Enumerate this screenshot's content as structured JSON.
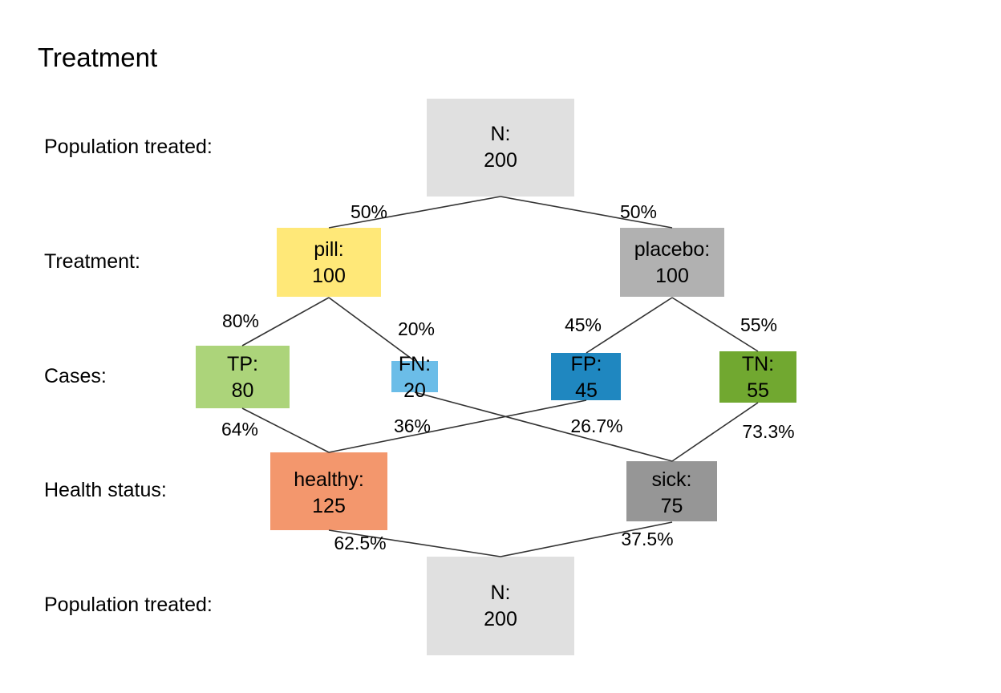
{
  "title": "Treatment",
  "row_labels": {
    "population_top": "Population treated:",
    "treatment": "Treatment:",
    "cases": "Cases:",
    "health_status": "Health status:",
    "population_bottom": "Population treated:"
  },
  "nodes": {
    "n_top": {
      "label": "N:",
      "value": "200",
      "color": "#e0e0e0"
    },
    "pill": {
      "label": "pill:",
      "value": "100",
      "color": "#ffe878"
    },
    "placebo": {
      "label": "placebo:",
      "value": "100",
      "color": "#b1b1b1"
    },
    "tp": {
      "label": "TP:",
      "value": "80",
      "color": "#acd47a"
    },
    "fn": {
      "label": "FN:",
      "value": "20",
      "color": "#6bbde8"
    },
    "fp": {
      "label": "FP:",
      "value": "45",
      "color": "#1f87c0"
    },
    "tn": {
      "label": "TN:",
      "value": "55",
      "color": "#71a830"
    },
    "healthy": {
      "label": "healthy:",
      "value": "125",
      "color": "#f3976d"
    },
    "sick": {
      "label": "sick:",
      "value": "75",
      "color": "#969696"
    },
    "n_bottom": {
      "label": "N:",
      "value": "200",
      "color": "#e0e0e0"
    }
  },
  "edges": {
    "n_pill": "50%",
    "n_placebo": "50%",
    "pill_tp": "80%",
    "pill_fn": "20%",
    "placebo_fp": "45%",
    "placebo_tn": "55%",
    "tp_healthy": "64%",
    "fp_healthy": "36%",
    "fn_sick": "26.7%",
    "tn_sick": "73.3%",
    "healthy_n": "62.5%",
    "sick_n": "37.5%"
  }
}
